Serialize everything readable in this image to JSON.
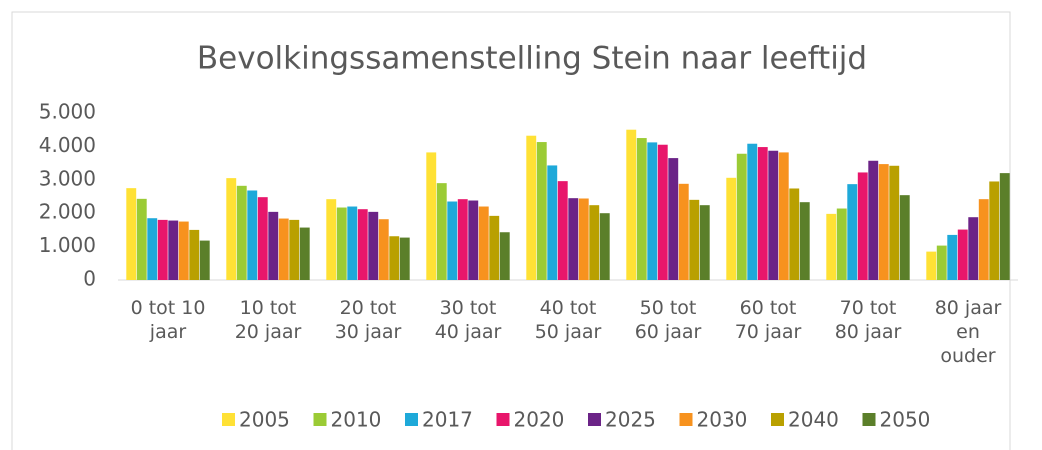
{
  "chart_data": {
    "type": "bar",
    "title": "Bevolkingssamenstelling Stein naar leeftijd",
    "categories": [
      "0 tot 10 jaar",
      "10 tot 20 jaar",
      "20 tot 30 jaar",
      "30 tot 40 jaar",
      "40 tot 50 jaar",
      "50 tot 60 jaar",
      "60 tot 70 jaar",
      "70 tot 80 jaar",
      "80 jaar en ouder"
    ],
    "series": [
      {
        "name": "2005",
        "color": "#ffe135",
        "values": [
          2750,
          3050,
          2420,
          3820,
          4320,
          4500,
          3060,
          1980,
          850
        ]
      },
      {
        "name": "2010",
        "color": "#9bcb35",
        "values": [
          2430,
          2820,
          2170,
          2900,
          4130,
          4250,
          3780,
          2140,
          1030
        ]
      },
      {
        "name": "2017",
        "color": "#1ea9d9",
        "values": [
          1850,
          2680,
          2200,
          2350,
          3430,
          4120,
          4080,
          2870,
          1350
        ]
      },
      {
        "name": "2020",
        "color": "#e8166b",
        "values": [
          1800,
          2480,
          2120,
          2420,
          2960,
          4050,
          3980,
          3220,
          1510
        ]
      },
      {
        "name": "2025",
        "color": "#6b2387",
        "values": [
          1780,
          2040,
          2040,
          2380,
          2450,
          3650,
          3870,
          3570,
          1880
        ]
      },
      {
        "name": "2030",
        "color": "#f7921e",
        "values": [
          1750,
          1840,
          1820,
          2200,
          2440,
          2880,
          3820,
          3470,
          2420
        ]
      },
      {
        "name": "2040",
        "color": "#b9a000",
        "values": [
          1500,
          1800,
          1310,
          1920,
          2240,
          2400,
          2740,
          3420,
          2950
        ]
      },
      {
        "name": "2050",
        "color": "#5b7f2a",
        "values": [
          1180,
          1570,
          1270,
          1430,
          2000,
          2240,
          2330,
          2540,
          3200
        ]
      }
    ],
    "ylim": [
      0,
      5000
    ],
    "yticks": [
      0,
      {
        "value": 1000,
        "label": "1.000"
      },
      {
        "value": 2000,
        "label": "2.000"
      },
      {
        "value": 3000,
        "label": "3.000"
      },
      {
        "value": 4000,
        "label": "4.000"
      },
      {
        "value": 5000,
        "label": "5.000"
      }
    ],
    "grid": false,
    "legend": "bottom"
  }
}
